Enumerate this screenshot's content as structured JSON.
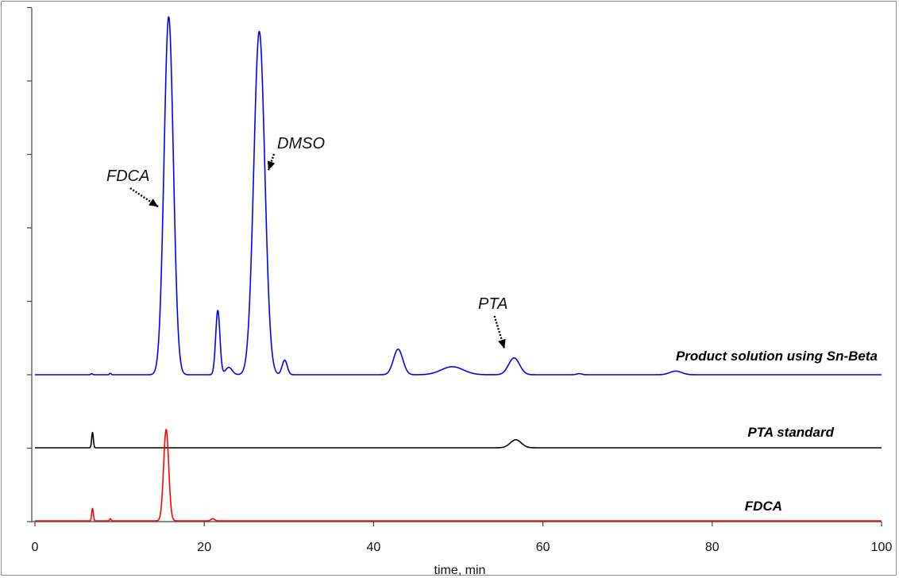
{
  "chart_data": {
    "type": "line",
    "xlabel": "time, min",
    "ylabel": "",
    "xlim": [
      0,
      100
    ],
    "x_ticks": [
      "0",
      "20",
      "40",
      "60",
      "80",
      "100"
    ],
    "grid": false,
    "legend": "none (traces labelled directly)",
    "series": [
      {
        "name": "Product solution using Sn-Beta",
        "color": "#0000ff",
        "baseline": 0,
        "peaks": [
          {
            "t": 6.7,
            "h": 0.15,
            "w": 0.1
          },
          {
            "t": 8.9,
            "h": 0.2,
            "w": 0.1
          },
          {
            "t": 15.8,
            "h": 49,
            "w": 0.55
          },
          {
            "t": 21.6,
            "h": 8.8,
            "w": 0.25
          },
          {
            "t": 22.9,
            "h": 1.0,
            "w": 0.4
          },
          {
            "t": 26.5,
            "h": 47,
            "w": 0.65
          },
          {
            "t": 29.5,
            "h": 2.0,
            "w": 0.3
          },
          {
            "t": 42.9,
            "h": 3.5,
            "w": 0.55
          },
          {
            "t": 49.3,
            "h": 1.1,
            "w": 1.3
          },
          {
            "t": 56.6,
            "h": 2.3,
            "w": 0.65
          },
          {
            "t": 64.3,
            "h": 0.15,
            "w": 0.3
          },
          {
            "t": 75.7,
            "h": 0.5,
            "w": 0.7
          }
        ]
      },
      {
        "name": "PTA standard",
        "color": "#000000",
        "baseline": -10,
        "peaks": [
          {
            "t": 6.8,
            "h": 2.1,
            "w": 0.1
          },
          {
            "t": 56.8,
            "h": 1.1,
            "w": 0.65
          }
        ]
      },
      {
        "name": "FDCA",
        "color": "#ff0000",
        "baseline": -20,
        "peaks": [
          {
            "t": 6.8,
            "h": 1.7,
            "w": 0.1
          },
          {
            "t": 8.9,
            "h": 0.3,
            "w": 0.08
          },
          {
            "t": 15.5,
            "h": 12.5,
            "w": 0.3
          },
          {
            "t": 21.0,
            "h": 0.3,
            "w": 0.2
          }
        ]
      }
    ],
    "annotations": [
      {
        "text": "FDCA",
        "t": 15.3,
        "target_series": 0,
        "target_h": 23
      },
      {
        "text": "DMSO",
        "t": 27.2,
        "target_series": 0,
        "target_h": 28
      },
      {
        "text": "PTA",
        "t": 56.2,
        "target_series": 0,
        "target_h": 3.6
      }
    ]
  }
}
